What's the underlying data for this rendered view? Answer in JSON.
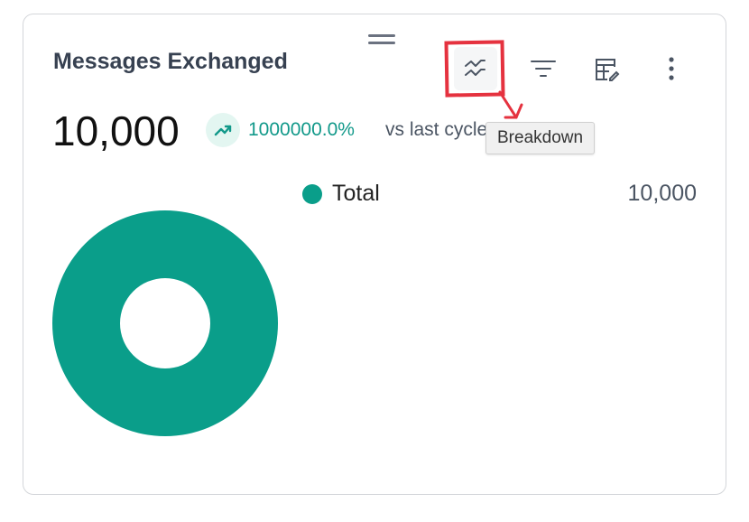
{
  "widget": {
    "title": "Messages Exchanged",
    "total": "10,000",
    "change_percent": "1000000.0%",
    "change_suffix": "vs last cycle",
    "trend": "up",
    "accent_color": "#0a9e8a"
  },
  "toolbar": {
    "icons": [
      "drag-handle-icon",
      "breakdown-icon",
      "filter-icon",
      "table-edit-icon",
      "more-vertical-icon"
    ],
    "tooltip": "Breakdown"
  },
  "chart_data": {
    "type": "pie",
    "donut": true,
    "categories": [
      "Total"
    ],
    "values": [
      10000
    ],
    "value_labels": [
      "10,000"
    ],
    "colors": [
      "#0a9e8a"
    ],
    "legend": "top-right"
  }
}
